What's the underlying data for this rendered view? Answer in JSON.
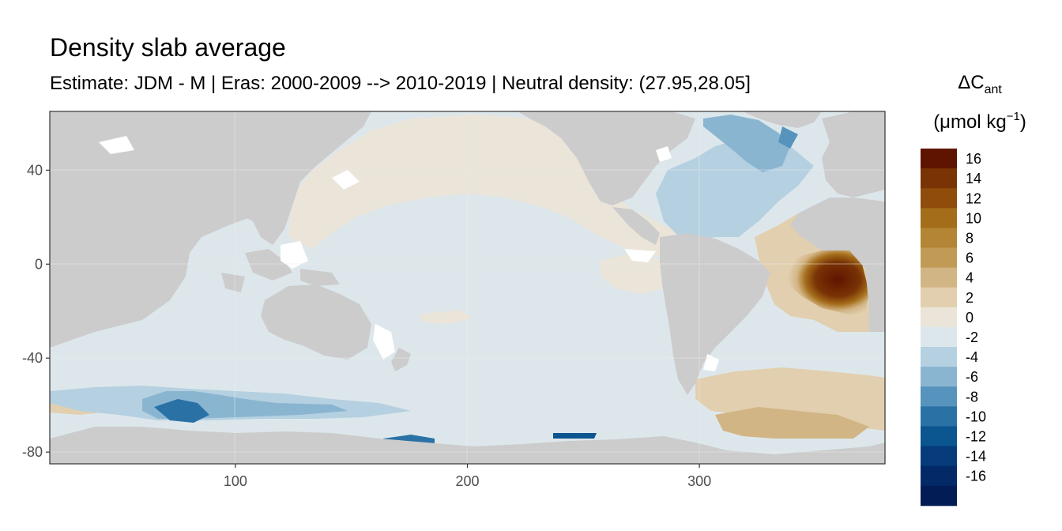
{
  "header": {
    "title": "Density slab average",
    "subtitle": "Estimate: JDM - M | Eras: 2000-2009 --> 2010-2019 | Neutral density: (27.95,28.05]"
  },
  "map": {
    "x_ticks": [
      {
        "value": 100,
        "label": "100"
      },
      {
        "value": 200,
        "label": "200"
      },
      {
        "value": 300,
        "label": "300"
      }
    ],
    "y_ticks": [
      {
        "value": 40,
        "label": "40"
      },
      {
        "value": 0,
        "label": "0"
      },
      {
        "value": -40,
        "label": "-40"
      },
      {
        "value": -80,
        "label": "-80"
      }
    ],
    "x_range": [
      20,
      380
    ],
    "y_range": [
      -85,
      65
    ],
    "land_color": "#cccccc",
    "missing_color": "#ffffff"
  },
  "legend": {
    "title_main": "ΔC",
    "title_sub": "ant",
    "unit_open": "(μmol kg",
    "unit_sup": "−1",
    "unit_close": ")",
    "bins": [
      {
        "label": "16",
        "color": "#5f1400"
      },
      {
        "label": "14",
        "color": "#7a3305"
      },
      {
        "label": "12",
        "color": "#8f4c0a"
      },
      {
        "label": "10",
        "color": "#a46d1a"
      },
      {
        "label": "8",
        "color": "#b38534"
      },
      {
        "label": "6",
        "color": "#c19a55"
      },
      {
        "label": "4",
        "color": "#d2b584"
      },
      {
        "label": "2",
        "color": "#e2cfaf"
      },
      {
        "label": "0",
        "color": "#ebe4d8"
      },
      {
        "label": "-2",
        "color": "#dce7ec"
      },
      {
        "label": "-4",
        "color": "#b5d0e1"
      },
      {
        "label": "-6",
        "color": "#8ab5d1"
      },
      {
        "label": "-8",
        "color": "#5794bd"
      },
      {
        "label": "-10",
        "color": "#2a72a5"
      },
      {
        "label": "-12",
        "color": "#0b5590"
      },
      {
        "label": "-14",
        "color": "#063c7a"
      },
      {
        "label": "-16",
        "color": "#032a66"
      },
      {
        "label": "",
        "color": "#021c55"
      }
    ]
  }
}
